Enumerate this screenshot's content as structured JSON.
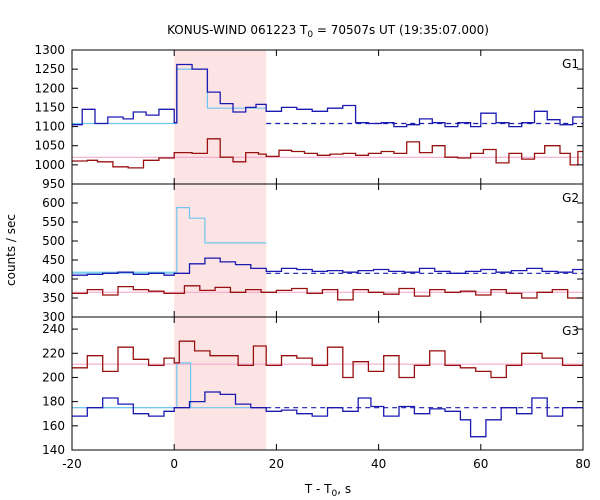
{
  "chart_data": {
    "type": "line",
    "title": {
      "main": "KONUS-WIND 061223 T",
      "sub": "0",
      "rest": " = 70507s UT (19:35:07.000)"
    },
    "xlabel": {
      "main": "T - T",
      "sub": "0",
      "rest": ", s"
    },
    "ylabel": "counts / sec",
    "xlim": [
      -20,
      80
    ],
    "xticks": [
      -20,
      0,
      20,
      40,
      60,
      80
    ],
    "shaded_interval": [
      0,
      18
    ],
    "colors": {
      "shade": "#fde4e4",
      "blue": "#1a1ab0",
      "darkred": "#991010",
      "lightblue": "#6ec6ee",
      "pink": "#f0a0c8"
    },
    "panels": [
      {
        "label": "G1",
        "ylim": [
          950,
          1300
        ],
        "yticks": [
          950,
          1000,
          1050,
          1100,
          1150,
          1200,
          1250,
          1300
        ],
        "blue_bg": 1108,
        "red_bg": 1020,
        "blue_steps": [
          [
            -20,
            1105
          ],
          [
            -18,
            1145
          ],
          [
            -15.5,
            1108
          ],
          [
            -13,
            1125
          ],
          [
            -10,
            1120
          ],
          [
            -8,
            1138
          ],
          [
            -5.5,
            1130
          ],
          [
            -3,
            1145
          ],
          [
            0,
            1110
          ],
          [
            0.5,
            1262
          ],
          [
            3.5,
            1250
          ],
          [
            6.5,
            1190
          ],
          [
            9,
            1160
          ],
          [
            11.5,
            1138
          ],
          [
            14,
            1150
          ],
          [
            16,
            1158
          ],
          [
            18,
            1140
          ],
          [
            21,
            1150
          ],
          [
            24,
            1145
          ],
          [
            27,
            1140
          ],
          [
            30,
            1148
          ],
          [
            33,
            1155
          ],
          [
            35.5,
            1110
          ],
          [
            38,
            1108
          ],
          [
            40.5,
            1110
          ],
          [
            43,
            1100
          ],
          [
            45.5,
            1105
          ],
          [
            48,
            1120
          ],
          [
            50.5,
            1110
          ],
          [
            53,
            1100
          ],
          [
            55.5,
            1110
          ],
          [
            58,
            1100
          ],
          [
            60,
            1135
          ],
          [
            63,
            1110
          ],
          [
            65.5,
            1100
          ],
          [
            68,
            1110
          ],
          [
            70.5,
            1140
          ],
          [
            73,
            1118
          ],
          [
            75.5,
            1105
          ],
          [
            78,
            1125
          ],
          [
            80,
            1125
          ]
        ],
        "light_steps": [
          [
            -20,
            1108
          ],
          [
            0.5,
            1108
          ],
          [
            0.5,
            1250
          ],
          [
            6.5,
            1250
          ],
          [
            6.5,
            1148
          ],
          [
            18,
            1148
          ]
        ],
        "red_steps": [
          [
            -20,
            1010
          ],
          [
            -17,
            1012
          ],
          [
            -15,
            1008
          ],
          [
            -12,
            995
          ],
          [
            -9,
            992
          ],
          [
            -6,
            1012
          ],
          [
            -3,
            1018
          ],
          [
            0,
            1032
          ],
          [
            3.5,
            1030
          ],
          [
            6.5,
            1068
          ],
          [
            9,
            1020
          ],
          [
            11.5,
            1008
          ],
          [
            14,
            1032
          ],
          [
            16.5,
            1028
          ],
          [
            18,
            1022
          ],
          [
            20.5,
            1038
          ],
          [
            23,
            1035
          ],
          [
            25.5,
            1030
          ],
          [
            28,
            1025
          ],
          [
            30.5,
            1028
          ],
          [
            33,
            1030
          ],
          [
            35.5,
            1025
          ],
          [
            38,
            1030
          ],
          [
            40.5,
            1035
          ],
          [
            43,
            1030
          ],
          [
            45.5,
            1060
          ],
          [
            48,
            1032
          ],
          [
            50.5,
            1050
          ],
          [
            53,
            1020
          ],
          [
            55.5,
            1018
          ],
          [
            58,
            1030
          ],
          [
            60.5,
            1040
          ],
          [
            63,
            1005
          ],
          [
            65.5,
            1030
          ],
          [
            68,
            1015
          ],
          [
            70.5,
            1030
          ],
          [
            72.5,
            1050
          ],
          [
            75.5,
            1030
          ],
          [
            77.5,
            1000
          ],
          [
            79,
            1035
          ],
          [
            80,
            1035
          ]
        ]
      },
      {
        "label": "G2",
        "ylim": [
          300,
          650
        ],
        "yticks": [
          300,
          350,
          400,
          450,
          500,
          550,
          600
        ],
        "blue_bg": 415,
        "red_bg": 365,
        "blue_steps": [
          [
            -20,
            410
          ],
          [
            -17,
            412
          ],
          [
            -14,
            415
          ],
          [
            -11,
            418
          ],
          [
            -8,
            412
          ],
          [
            -5,
            415
          ],
          [
            -2,
            410
          ],
          [
            0,
            415
          ],
          [
            3,
            440
          ],
          [
            6,
            455
          ],
          [
            9,
            445
          ],
          [
            12,
            438
          ],
          [
            15,
            428
          ],
          [
            18,
            420
          ],
          [
            21,
            428
          ],
          [
            24,
            425
          ],
          [
            27,
            420
          ],
          [
            30,
            422
          ],
          [
            33,
            418
          ],
          [
            36,
            422
          ],
          [
            39,
            425
          ],
          [
            42,
            420
          ],
          [
            45,
            418
          ],
          [
            48,
            428
          ],
          [
            51,
            420
          ],
          [
            54,
            415
          ],
          [
            57,
            420
          ],
          [
            60,
            425
          ],
          [
            63,
            418
          ],
          [
            66,
            422
          ],
          [
            69,
            428
          ],
          [
            72,
            420
          ],
          [
            75,
            418
          ],
          [
            78,
            425
          ],
          [
            80,
            425
          ]
        ],
        "light_steps": [
          [
            -20,
            418
          ],
          [
            0.5,
            418
          ],
          [
            0.5,
            588
          ],
          [
            3,
            588
          ],
          [
            3,
            560
          ],
          [
            6,
            560
          ],
          [
            6,
            495
          ],
          [
            18,
            495
          ]
        ],
        "red_steps": [
          [
            -20,
            362
          ],
          [
            -17,
            372
          ],
          [
            -14,
            358
          ],
          [
            -11,
            380
          ],
          [
            -8,
            372
          ],
          [
            -5,
            368
          ],
          [
            -2,
            362
          ],
          [
            0,
            362
          ],
          [
            2,
            382
          ],
          [
            5,
            370
          ],
          [
            8,
            378
          ],
          [
            11,
            365
          ],
          [
            14,
            372
          ],
          [
            17,
            365
          ],
          [
            20,
            370
          ],
          [
            23,
            375
          ],
          [
            26,
            362
          ],
          [
            29,
            372
          ],
          [
            32,
            345
          ],
          [
            35,
            372
          ],
          [
            38,
            365
          ],
          [
            41,
            360
          ],
          [
            44,
            375
          ],
          [
            47,
            355
          ],
          [
            50,
            372
          ],
          [
            53,
            365
          ],
          [
            56,
            368
          ],
          [
            59,
            358
          ],
          [
            62,
            372
          ],
          [
            65,
            362
          ],
          [
            68,
            350
          ],
          [
            71,
            365
          ],
          [
            74,
            372
          ],
          [
            77,
            350
          ],
          [
            80,
            350
          ]
        ]
      },
      {
        "label": "G3",
        "ylim": [
          140,
          250
        ],
        "yticks": [
          140,
          160,
          180,
          200,
          220,
          240
        ],
        "blue_bg": 175,
        "red_bg": 211,
        "blue_steps": [
          [
            -20,
            168
          ],
          [
            -17,
            175
          ],
          [
            -14,
            183
          ],
          [
            -11,
            178
          ],
          [
            -8,
            170
          ],
          [
            -5,
            168
          ],
          [
            -2,
            172
          ],
          [
            0,
            175
          ],
          [
            3,
            180
          ],
          [
            6,
            188
          ],
          [
            9,
            186
          ],
          [
            12,
            178
          ],
          [
            15,
            175
          ],
          [
            18,
            172
          ],
          [
            21,
            173
          ],
          [
            24,
            170
          ],
          [
            27,
            168
          ],
          [
            30,
            175
          ],
          [
            33,
            172
          ],
          [
            36,
            183
          ],
          [
            38.5,
            176
          ],
          [
            41,
            168
          ],
          [
            44,
            176
          ],
          [
            47,
            170
          ],
          [
            50,
            174
          ],
          [
            53,
            172
          ],
          [
            56,
            165
          ],
          [
            58,
            151
          ],
          [
            61,
            165
          ],
          [
            64,
            175
          ],
          [
            67,
            170
          ],
          [
            70,
            183
          ],
          [
            73,
            168
          ],
          [
            76,
            175
          ],
          [
            80,
            175
          ]
        ],
        "light_steps": [
          [
            -20,
            175
          ],
          [
            0.5,
            175
          ],
          [
            0.5,
            212
          ],
          [
            3.2,
            212
          ],
          [
            3.2,
            175
          ],
          [
            18,
            175
          ]
        ],
        "red_steps": [
          [
            -20,
            208
          ],
          [
            -17,
            218
          ],
          [
            -14,
            205
          ],
          [
            -11,
            225
          ],
          [
            -8,
            215
          ],
          [
            -5,
            210
          ],
          [
            -2,
            216
          ],
          [
            0,
            212
          ],
          [
            1,
            230
          ],
          [
            4,
            222
          ],
          [
            7,
            218
          ],
          [
            10,
            218
          ],
          [
            12.5,
            210
          ],
          [
            15.5,
            226
          ],
          [
            18,
            210
          ],
          [
            21,
            218
          ],
          [
            24,
            216
          ],
          [
            27,
            210
          ],
          [
            30,
            225
          ],
          [
            33,
            200
          ],
          [
            35,
            213
          ],
          [
            38,
            205
          ],
          [
            41,
            218
          ],
          [
            44,
            200
          ],
          [
            47,
            210
          ],
          [
            50,
            222
          ],
          [
            53,
            210
          ],
          [
            56,
            208
          ],
          [
            59,
            205
          ],
          [
            62,
            200
          ],
          [
            65,
            210
          ],
          [
            68,
            220
          ],
          [
            72,
            216
          ],
          [
            76,
            210
          ],
          [
            80,
            210
          ]
        ]
      }
    ]
  }
}
